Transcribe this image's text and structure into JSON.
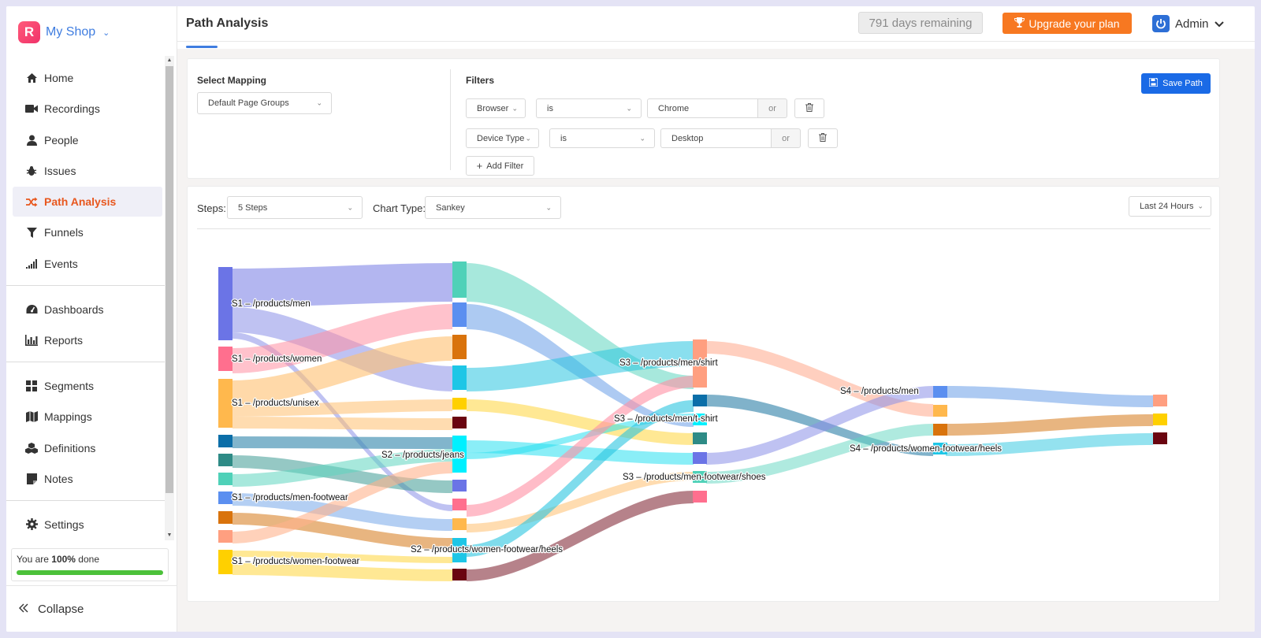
{
  "brand": {
    "letter": "R",
    "name": "My Shop"
  },
  "nav": [
    {
      "label": "Home",
      "icon": "home-icon"
    },
    {
      "label": "Recordings",
      "icon": "video-icon"
    },
    {
      "label": "People",
      "icon": "user-icon"
    },
    {
      "label": "Issues",
      "icon": "bug-icon"
    },
    {
      "label": "Path Analysis",
      "icon": "shuffle-icon",
      "active": true
    },
    {
      "label": "Funnels",
      "icon": "funnel-icon"
    },
    {
      "label": "Events",
      "icon": "signal-icon"
    },
    {
      "label": "Dashboards",
      "icon": "dashboard-icon"
    },
    {
      "label": "Reports",
      "icon": "bar-chart-icon"
    },
    {
      "label": "Segments",
      "icon": "grid-icon"
    },
    {
      "label": "Mappings",
      "icon": "map-icon"
    },
    {
      "label": "Definitions",
      "icon": "cubes-icon"
    },
    {
      "label": "Notes",
      "icon": "note-icon"
    },
    {
      "label": "Settings",
      "icon": "gear-icon"
    }
  ],
  "progress": {
    "prefix": "You are ",
    "pct": "100%",
    "suffix": " done",
    "value": 100
  },
  "collapse_label": "Collapse",
  "header": {
    "title": "Path Analysis",
    "days_remaining": "791 days remaining",
    "upgrade_label": "Upgrade your plan",
    "user": "Admin"
  },
  "mapping": {
    "label": "Select Mapping",
    "value": "Default Page Groups"
  },
  "filters": {
    "label": "Filters",
    "rows": [
      {
        "field": "Browser",
        "operator": "is",
        "value": "Chrome",
        "or": "or"
      },
      {
        "field": "Device Type",
        "operator": "is",
        "value": "Desktop",
        "or": "or"
      }
    ],
    "add_label": "Add Filter",
    "save_label": "Save Path"
  },
  "controls": {
    "steps_label": "Steps:",
    "steps_value": "5 Steps",
    "chart_type_label": "Chart Type:",
    "chart_type_value": "Sankey",
    "range_value": "Last 24 Hours"
  },
  "chart_data": {
    "type": "sankey",
    "node_labels": [
      "S1 – /products/men",
      "S1 – /products/women",
      "S1 – /products/unisex",
      "S1 – /products/men-footwear",
      "S1 – /products/women-footwear",
      "S2 – /products/jeans",
      "S2 – /products/women-footwear/heels",
      "S3 – /products/men/shirt",
      "S3 – /products/men/t-shirt",
      "S3 – /products/men-footwear/shoes",
      "S4 – /products/men",
      "S4 – /products/women-footwear/heels"
    ]
  }
}
